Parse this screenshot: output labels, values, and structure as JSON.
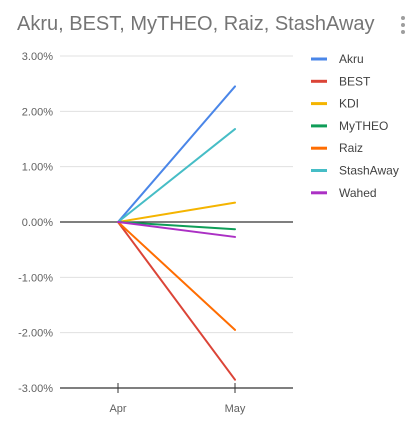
{
  "chart_data": {
    "type": "line",
    "title": "Akru, BEST, MyTHEO, Raiz, StashAway…",
    "categories": [
      "Apr",
      "May"
    ],
    "ylim": [
      -0.03,
      0.03
    ],
    "yticks": [
      0.03,
      0.02,
      0.01,
      0.0,
      -0.01,
      -0.02,
      -0.03
    ],
    "ytick_labels": [
      "3.00%",
      "2.00%",
      "1.00%",
      "0.00%",
      "-1.00%",
      "-2.00%",
      "-3.00%"
    ],
    "grid": true,
    "legend_position": "right",
    "series": [
      {
        "name": "Akru",
        "color": "#4a86e8",
        "values": [
          0.0,
          0.0245
        ]
      },
      {
        "name": "BEST",
        "color": "#db4437",
        "values": [
          0.0,
          -0.0285
        ]
      },
      {
        "name": "KDI",
        "color": "#f4b400",
        "values": [
          0.0,
          0.0035
        ]
      },
      {
        "name": "MyTHEO",
        "color": "#0f9d58",
        "values": [
          0.0,
          -0.0013
        ]
      },
      {
        "name": "Raiz",
        "color": "#ff6d01",
        "values": [
          0.0,
          -0.0195
        ]
      },
      {
        "name": "StashAway",
        "color": "#46bdc6",
        "values": [
          0.0,
          0.0168
        ]
      },
      {
        "name": "Wahed",
        "color": "#ab30c4",
        "values": [
          0.0,
          -0.0027
        ]
      }
    ]
  }
}
